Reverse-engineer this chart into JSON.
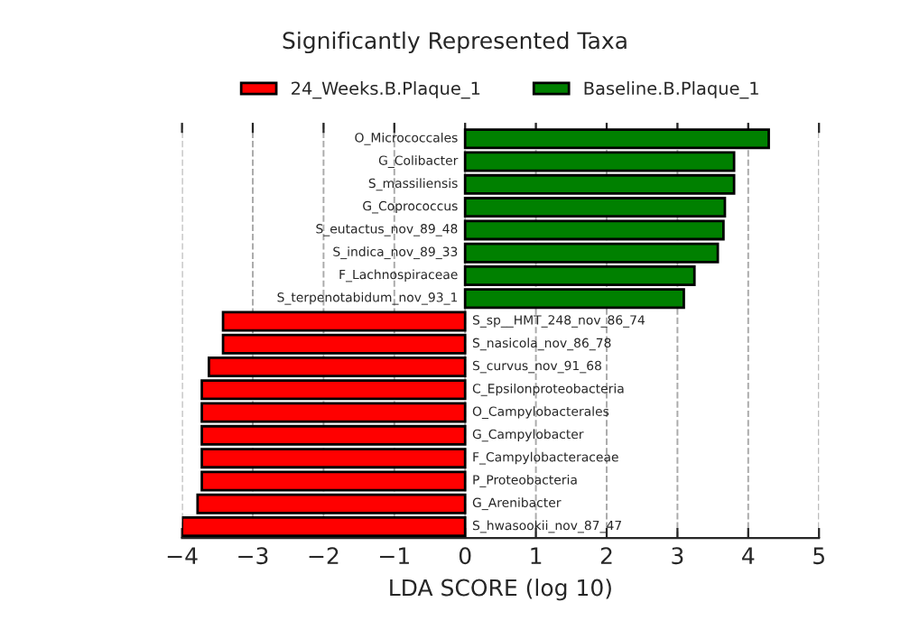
{
  "chart_data": {
    "type": "bar",
    "orientation": "horizontal",
    "title": "Significantly Represented Taxa",
    "xlabel": "LDA SCORE (log 10)",
    "categories": [
      "O_Micrococcales",
      "G_Colibacter",
      "S_massiliensis",
      "G_Coprococcus",
      "S_eutactus_nov_89_48",
      "S_indica_nov_89_33",
      "F_Lachnospiraceae",
      "S_terpenotabidum_nov_93_1",
      "S_sp__HMT_248_nov_86_74",
      "S_nasicola_nov_86_78",
      "S_curvus_nov_91_68",
      "C_Epsilonproteobacteria",
      "O_Campylobacterales",
      "G_Campylobacter",
      "F_Campylobacteraceae",
      "P_Proteobacteria",
      "G_Arenibacter",
      "S_hwasookii_nov_87_47"
    ],
    "series": [
      {
        "name": "24_Weeks.B.Plaque_1",
        "color": "#ff0000",
        "values": [
          null,
          null,
          null,
          null,
          null,
          null,
          null,
          null,
          -3.42,
          -3.42,
          -3.62,
          -3.72,
          -3.72,
          -3.72,
          -3.72,
          -3.72,
          -3.78,
          -4.0
        ]
      },
      {
        "name": "Baseline.B.Plaque_1",
        "color": "#008000",
        "values": [
          4.29,
          3.8,
          3.8,
          3.67,
          3.65,
          3.57,
          3.24,
          3.09,
          null,
          null,
          null,
          null,
          null,
          null,
          null,
          null,
          null,
          null
        ]
      }
    ],
    "xlim": [
      -4,
      5
    ],
    "xticks": [
      {
        "value": -4,
        "label": "−4"
      },
      {
        "value": -3,
        "label": "−3"
      },
      {
        "value": -2,
        "label": "−2"
      },
      {
        "value": -1,
        "label": "−1"
      },
      0,
      1,
      2,
      3,
      4,
      5
    ],
    "grid": "x",
    "line_style": "dashed",
    "legend": "top"
  }
}
